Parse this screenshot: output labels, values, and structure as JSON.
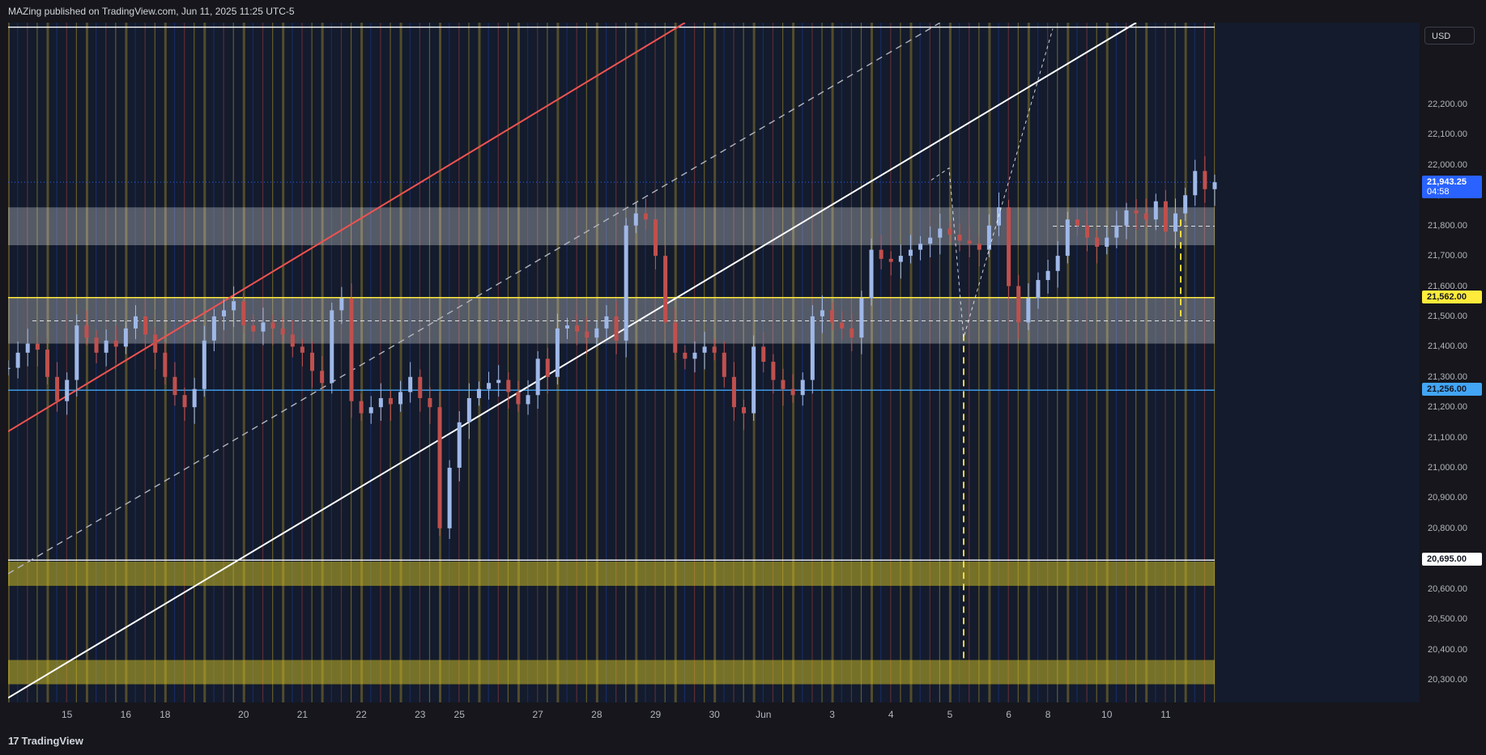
{
  "header": {
    "publish_note": "MAZing published on TradingView.com, Jun 11, 2025 11:25 UTC-5"
  },
  "footer": {
    "brand": "TradingView",
    "brand_mark": "17"
  },
  "price_axis": {
    "currency_label": "USD"
  },
  "badges": {
    "last_price": {
      "value": "21,943.25",
      "countdown": "04:58",
      "color": "#2962ff"
    },
    "level_1": {
      "value": "21,562.00",
      "color": "#ffeb3b"
    },
    "level_2": {
      "value": "21,256.00",
      "color": "#42a5f5"
    },
    "level_3": {
      "value": "20,695.00",
      "color": "#ffffff"
    }
  },
  "chart_data": {
    "type": "candlestick",
    "y_ticks": [
      "22,200.00",
      "22,100.00",
      "22,000.00",
      "21,900.00",
      "21,800.00",
      "21,700.00",
      "21,600.00",
      "21,500.00",
      "21,400.00",
      "21,300.00",
      "21,200.00",
      "21,100.00",
      "21,000.00",
      "20,900.00",
      "20,800.00",
      "20,700.00",
      "20,600.00",
      "20,500.00",
      "20,400.00",
      "20,300.00"
    ],
    "y_tick_values": [
      22200,
      22100,
      22000,
      21900,
      21800,
      21700,
      21600,
      21500,
      21400,
      21300,
      21200,
      21100,
      21000,
      20900,
      20800,
      20700,
      20600,
      20500,
      20400,
      20300
    ],
    "x_ticks": [
      "15",
      "16",
      "18",
      "20",
      "21",
      "22",
      "23",
      "25",
      "27",
      "28",
      "29",
      "30",
      "Jun",
      "3",
      "4",
      "5",
      "6",
      "8",
      "10",
      "11"
    ],
    "x_tick_index": [
      6,
      12,
      16,
      24,
      30,
      36,
      42,
      46,
      54,
      60,
      66,
      72,
      77,
      84,
      90,
      96,
      102,
      106,
      112,
      118
    ],
    "ylim": [
      20225,
      22470
    ],
    "n_points": 124,
    "closes": [
      21330,
      21380,
      21410,
      21390,
      21300,
      21220,
      21290,
      21470,
      21430,
      21380,
      21420,
      21400,
      21460,
      21500,
      21440,
      21380,
      21300,
      21240,
      21200,
      21260,
      21420,
      21500,
      21520,
      21550,
      21470,
      21450,
      21480,
      21460,
      21440,
      21400,
      21380,
      21320,
      21280,
      21520,
      21560,
      21220,
      21180,
      21200,
      21230,
      21210,
      21250,
      21300,
      21230,
      21200,
      20800,
      21000,
      21150,
      21230,
      21260,
      21280,
      21290,
      21250,
      21210,
      21240,
      21360,
      21300,
      21460,
      21470,
      21450,
      21430,
      21460,
      21500,
      21420,
      21800,
      21840,
      21820,
      21700,
      21480,
      21380,
      21360,
      21380,
      21400,
      21380,
      21300,
      21200,
      21180,
      21400,
      21350,
      21290,
      21260,
      21240,
      21290,
      21500,
      21520,
      21480,
      21460,
      21430,
      21560,
      21720,
      21690,
      21680,
      21700,
      21720,
      21740,
      21760,
      21790,
      21770,
      21750,
      21740,
      21720,
      21800,
      21860,
      21600,
      21480,
      21560,
      21620,
      21650,
      21700,
      21820,
      21800,
      21760,
      21730,
      21760,
      21800,
      21850,
      21840,
      21820,
      21880,
      21780,
      21840,
      21900,
      21980,
      21920,
      21943
    ],
    "levels": [
      {
        "price": 22455,
        "color": "#ffffff"
      },
      {
        "price": 21562,
        "color": "#ffeb3b"
      },
      {
        "price": 21256,
        "color": "#42a5f5"
      },
      {
        "price": 20695,
        "color": "#ffffff"
      }
    ],
    "zones": [
      {
        "from": 21410,
        "to": 21560,
        "color": "#ffffff",
        "opacity": 0.28
      },
      {
        "from": 21735,
        "to": 21860,
        "color": "#ffffff",
        "opacity": 0.28
      },
      {
        "from": 20610,
        "to": 20690,
        "color": "#c8b826",
        "opacity": 0.55
      },
      {
        "from": 20285,
        "to": 20365,
        "color": "#c8b826",
        "opacity": 0.55
      }
    ],
    "trendlines": [
      {
        "from": [
          0,
          21120
        ],
        "to": [
          69,
          22470
        ],
        "color": "#ef5350",
        "dash": false
      },
      {
        "from": [
          0,
          20240
        ],
        "to": [
          115,
          22470
        ],
        "color": "#ffffff",
        "dash": false
      },
      {
        "from": [
          0,
          20650
        ],
        "to": [
          95,
          22470
        ],
        "color": "#b2b5be",
        "dash": true
      }
    ]
  }
}
